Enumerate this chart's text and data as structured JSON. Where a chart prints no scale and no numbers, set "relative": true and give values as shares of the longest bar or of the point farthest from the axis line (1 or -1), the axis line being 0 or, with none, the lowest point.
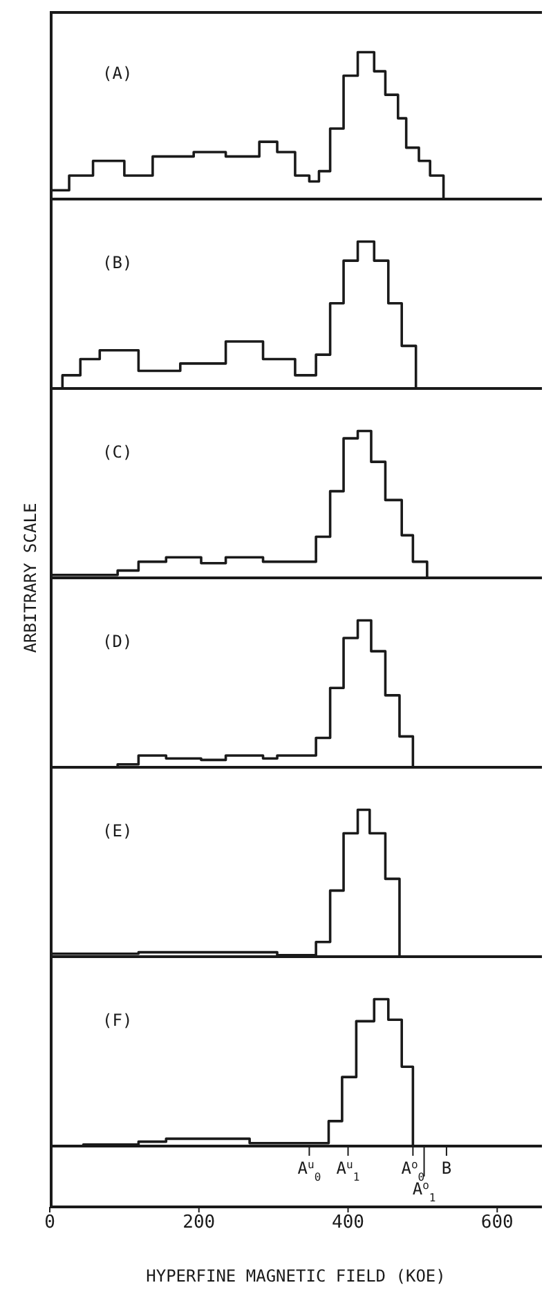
{
  "chart_data": [
    {
      "type": "step",
      "relative": true,
      "color": "#1a1a1a",
      "xlim": [
        0,
        660
      ],
      "tick_labels": false,
      "annotations": [
        "(A)"
      ],
      "x": [
        2,
        26,
        58,
        100,
        138,
        193,
        236,
        281,
        305,
        329,
        348,
        361,
        376,
        394,
        413,
        435,
        450,
        467,
        478,
        495,
        510,
        528
      ],
      "values": [
        0.06,
        0.16,
        0.26,
        0.16,
        0.29,
        0.32,
        0.29,
        0.39,
        0.32,
        0.16,
        0.12,
        0.19,
        0.48,
        0.84,
        1,
        0.87,
        0.71,
        0.55,
        0.35,
        0.26,
        0.16,
        0
      ]
    },
    {
      "type": "step",
      "relative": true,
      "color": "#1a1a1a",
      "xlim": [
        0,
        660
      ],
      "tick_labels": false,
      "annotations": [
        "(B)"
      ],
      "x": [
        2,
        17,
        41,
        67,
        119,
        175,
        236,
        286,
        329,
        357,
        376,
        394,
        413,
        435,
        454,
        472,
        491
      ],
      "values": [
        0,
        0.09,
        0.2,
        0.26,
        0.12,
        0.17,
        0.32,
        0.2,
        0.09,
        0.23,
        0.58,
        0.87,
        1,
        0.87,
        0.58,
        0.29,
        0
      ]
    },
    {
      "type": "step",
      "relative": true,
      "color": "#1a1a1a",
      "xlim": [
        0,
        660
      ],
      "tick_labels": false,
      "annotations": [
        "(C)"
      ],
      "ylabel": "ARBITRARY SCALE",
      "x": [
        2,
        91,
        119,
        156,
        203,
        236,
        286,
        333,
        357,
        376,
        394,
        413,
        431,
        450,
        472,
        487,
        506
      ],
      "values": [
        0.02,
        0.05,
        0.11,
        0.14,
        0.1,
        0.14,
        0.11,
        0.11,
        0.28,
        0.59,
        0.95,
        1,
        0.79,
        0.53,
        0.29,
        0.11,
        0
      ]
    },
    {
      "type": "step",
      "relative": true,
      "color": "#1a1a1a",
      "xlim": [
        0,
        660
      ],
      "tick_labels": false,
      "annotations": [
        "(D)"
      ],
      "x": [
        2,
        91,
        119,
        156,
        203,
        236,
        286,
        305,
        357,
        376,
        394,
        413,
        431,
        450,
        469,
        487
      ],
      "values": [
        0,
        0.02,
        0.08,
        0.06,
        0.05,
        0.08,
        0.06,
        0.08,
        0.2,
        0.54,
        0.88,
        1,
        0.79,
        0.49,
        0.21,
        0
      ]
    },
    {
      "type": "step",
      "relative": true,
      "color": "#1a1a1a",
      "xlim": [
        0,
        660
      ],
      "tick_labels": false,
      "annotations": [
        "(E)"
      ],
      "x": [
        2,
        119,
        212,
        305,
        338,
        357,
        376,
        394,
        413,
        429,
        450,
        469
      ],
      "values": [
        0.02,
        0.03,
        0.03,
        0.01,
        0.01,
        0.1,
        0.45,
        0.84,
        1,
        0.84,
        0.53,
        0
      ]
    },
    {
      "type": "step",
      "relative": true,
      "color": "#1a1a1a",
      "xlim": [
        0,
        660
      ],
      "xticks": [
        0,
        200,
        400,
        600
      ],
      "tick_labels": "x",
      "xlabel": "HYPERFINE MAGNETIC FIELD (KOE)",
      "annotations": [
        "(F)"
      ],
      "ref_lines": [
        {
          "axis": "x",
          "value": 348,
          "label": "A$^{u}$$_{0}$"
        },
        {
          "axis": "x",
          "value": 400,
          "label": "A$^{u}$$_{1}$"
        },
        {
          "axis": "x",
          "value": 487,
          "label": "A$^{o}$$_{0}$"
        },
        {
          "axis": "x",
          "value": 502,
          "label": "A$^{o}$$_{1}$"
        },
        {
          "axis": "x",
          "value": 532,
          "label": "B"
        }
      ],
      "x": [
        2,
        45,
        119,
        156,
        230,
        268,
        374,
        392,
        411,
        435,
        454,
        472,
        487
      ],
      "values": [
        0,
        0.01,
        0.03,
        0.05,
        0.05,
        0.02,
        0.17,
        0.47,
        0.85,
        1,
        0.86,
        0.54,
        0
      ]
    }
  ]
}
